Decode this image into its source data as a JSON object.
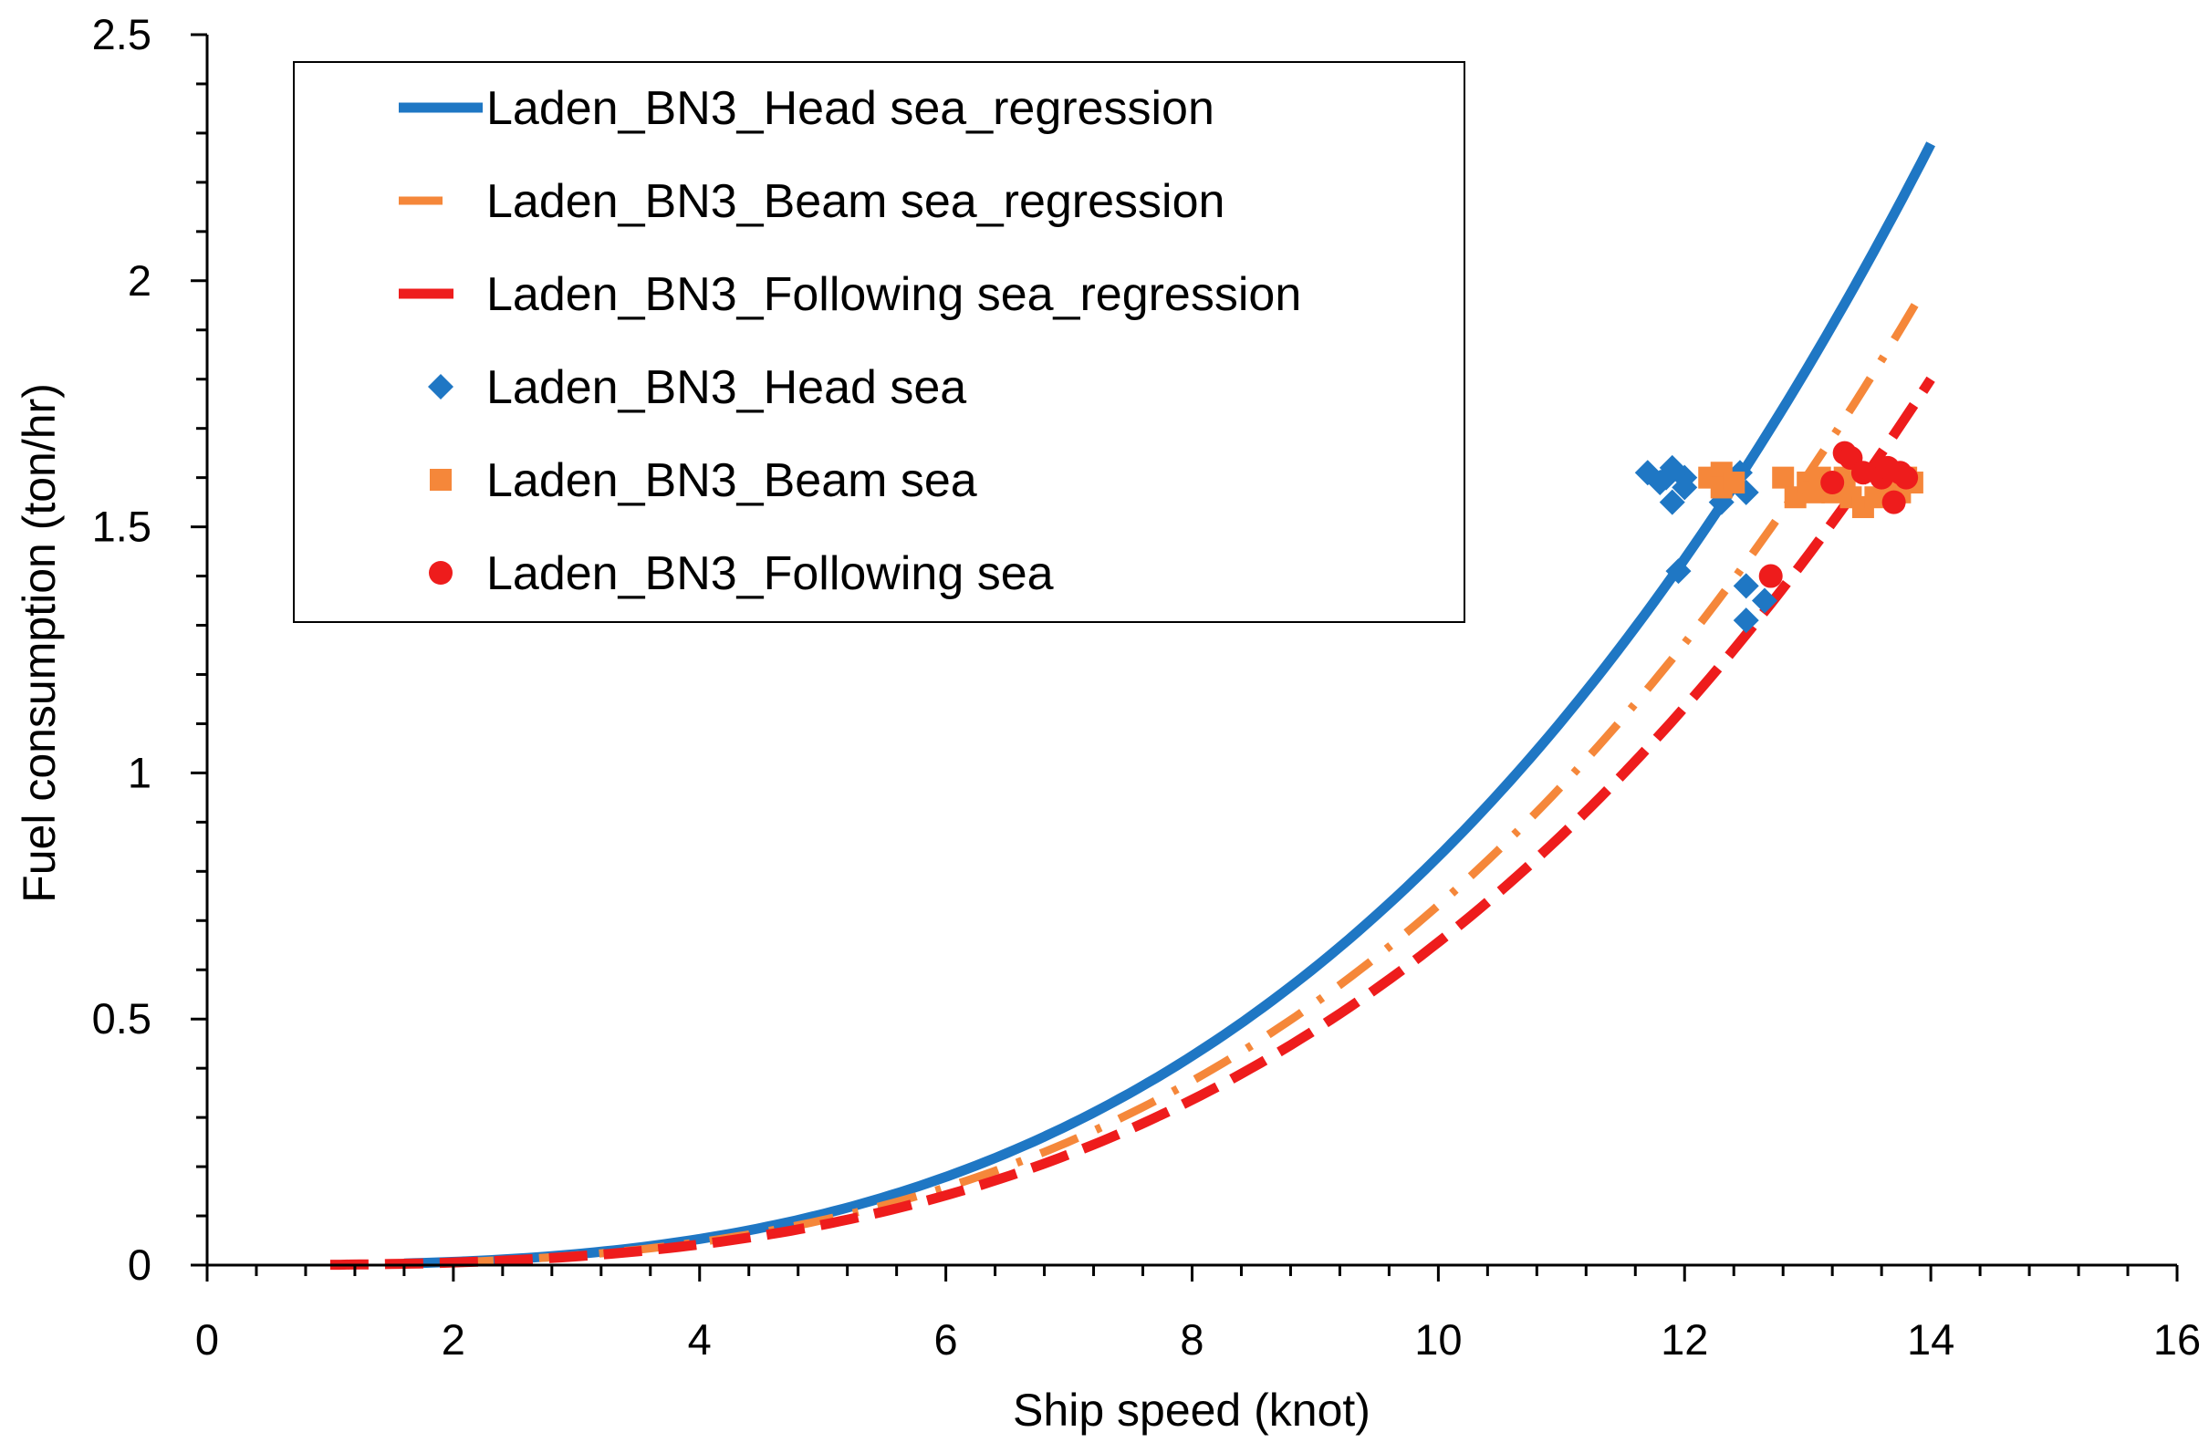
{
  "chart_data": {
    "type": "scatter",
    "title": "",
    "xlabel": "Ship speed (knot)",
    "ylabel": "Fuel consumption (ton/hr)",
    "xlim": [
      0,
      16
    ],
    "ylim": [
      0,
      2.5
    ],
    "xticks": [
      0,
      2,
      4,
      6,
      8,
      10,
      12,
      14,
      16
    ],
    "xtick_labels": [
      "0",
      "2",
      "4",
      "6",
      "8",
      "10",
      "12",
      "14",
      "16"
    ],
    "yticks": [
      0,
      0.5,
      1,
      1.5,
      2,
      2.5
    ],
    "ytick_labels": [
      "0",
      "0.5",
      "1",
      "1.5",
      "2",
      "2.5"
    ],
    "grid": false,
    "legend_position": "top-left",
    "series": [
      {
        "name": "Laden_BN3_Head sea_regression",
        "kind": "line",
        "style": "solid",
        "color": "#1F77C4",
        "x_start": 1.6,
        "x_end": 14.0,
        "model": "power",
        "coef": 0.0008302,
        "exponent": 3.0
      },
      {
        "name": "Laden_BN3_Beam sea_regression",
        "kind": "line",
        "style": "dash-dot",
        "color": "#F5873A",
        "x_start": 2.0,
        "x_end": 13.9,
        "model": "power",
        "coef": 0.000731,
        "exponent": 3.0
      },
      {
        "name": "Laden_BN3_Following sea_regression",
        "kind": "line",
        "style": "dash",
        "color": "#EE1C1C",
        "x_start": 1.0,
        "x_end": 14.0,
        "model": "power",
        "coef": 0.000656,
        "exponent": 3.0
      },
      {
        "name": "Laden_BN3_Head sea",
        "kind": "points",
        "marker": "diamond",
        "color": "#1F77C4",
        "points": [
          [
            11.7,
            1.61
          ],
          [
            11.8,
            1.59
          ],
          [
            11.9,
            1.62
          ],
          [
            11.85,
            1.6
          ],
          [
            12.0,
            1.6
          ],
          [
            11.9,
            1.55
          ],
          [
            12.0,
            1.58
          ],
          [
            11.95,
            1.41
          ],
          [
            12.35,
            1.58
          ],
          [
            12.45,
            1.61
          ],
          [
            12.5,
            1.57
          ],
          [
            12.3,
            1.55
          ],
          [
            12.5,
            1.38
          ],
          [
            12.5,
            1.31
          ],
          [
            12.65,
            1.35
          ]
        ]
      },
      {
        "name": "Laden_BN3_Beam sea",
        "kind": "points",
        "marker": "square",
        "color": "#F5873A",
        "points": [
          [
            12.2,
            1.6
          ],
          [
            12.3,
            1.61
          ],
          [
            12.3,
            1.58
          ],
          [
            12.4,
            1.59
          ],
          [
            12.8,
            1.6
          ],
          [
            12.9,
            1.56
          ],
          [
            13.0,
            1.59
          ],
          [
            13.05,
            1.57
          ],
          [
            13.1,
            1.6
          ],
          [
            13.2,
            1.57
          ],
          [
            13.3,
            1.6
          ],
          [
            13.35,
            1.56
          ],
          [
            13.45,
            1.54
          ],
          [
            13.55,
            1.56
          ],
          [
            13.65,
            1.59
          ],
          [
            13.75,
            1.57
          ],
          [
            13.8,
            1.6
          ],
          [
            13.85,
            1.59
          ]
        ]
      },
      {
        "name": "Laden_BN3_Following sea",
        "kind": "points",
        "marker": "circle",
        "color": "#EE1C1C",
        "points": [
          [
            12.7,
            1.4
          ],
          [
            13.2,
            1.59
          ],
          [
            13.3,
            1.65
          ],
          [
            13.35,
            1.64
          ],
          [
            13.45,
            1.61
          ],
          [
            13.6,
            1.6
          ],
          [
            13.65,
            1.62
          ],
          [
            13.7,
            1.55
          ],
          [
            13.75,
            1.61
          ],
          [
            13.8,
            1.6
          ]
        ]
      }
    ]
  }
}
